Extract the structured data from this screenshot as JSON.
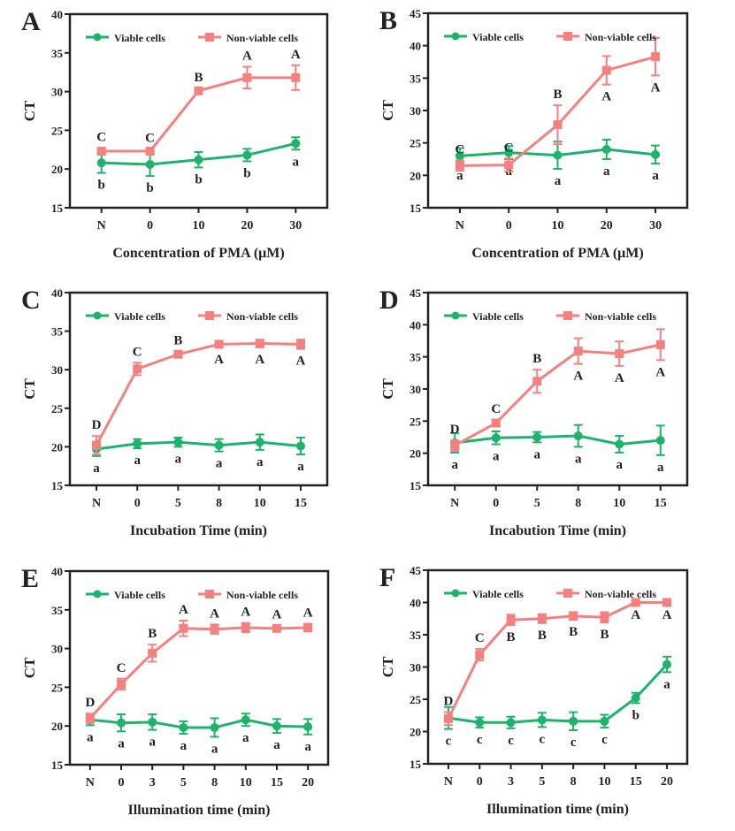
{
  "colors": {
    "viable": "#1db36b",
    "nonviable": "#f58080",
    "axis": "#222222"
  },
  "chart_data": [
    {
      "panel": "A",
      "type": "line",
      "ylabel": "CT",
      "xlabel": "Concentration of PMA (μM)",
      "ylim": [
        15,
        40
      ],
      "yticks": [
        15,
        20,
        25,
        30,
        35,
        40
      ],
      "categories": [
        "N",
        "0",
        "10",
        "20",
        "30"
      ],
      "legend_position": "top",
      "grid": false,
      "series": [
        {
          "name": "Viable cells",
          "marker": "circle",
          "values": [
            20.8,
            20.6,
            21.2,
            21.8,
            23.3
          ],
          "errors": [
            1.3,
            1.5,
            1.0,
            0.8,
            0.8
          ],
          "letters": [
            "b",
            "b",
            "b",
            "b",
            "a"
          ]
        },
        {
          "name": "Non-viable cells",
          "marker": "square",
          "values": [
            22.3,
            22.3,
            30.1,
            31.8,
            31.8
          ],
          "errors": [
            0.4,
            0.3,
            0.3,
            1.4,
            1.6
          ],
          "letters": [
            "C",
            "C",
            "B",
            "A",
            "A"
          ]
        }
      ]
    },
    {
      "panel": "B",
      "type": "line",
      "ylabel": "CT",
      "xlabel": "Concentration of PMA (μM)",
      "ylim": [
        15,
        45
      ],
      "yticks": [
        15,
        20,
        25,
        30,
        35,
        40,
        45
      ],
      "categories": [
        "N",
        "0",
        "10",
        "20",
        "30"
      ],
      "legend_position": "top",
      "grid": false,
      "series": [
        {
          "name": "Viable cells",
          "marker": "circle",
          "values": [
            23.0,
            23.5,
            23.1,
            24.0,
            23.2
          ],
          "errors": [
            1.2,
            1.0,
            2.1,
            1.5,
            1.4
          ],
          "letters": [
            "a",
            "a",
            "a",
            "a",
            "a"
          ]
        },
        {
          "name": "Non-viable cells",
          "marker": "square",
          "values": [
            21.5,
            21.6,
            27.8,
            36.2,
            38.3
          ],
          "errors": [
            0.8,
            1.0,
            3.0,
            2.2,
            2.9
          ],
          "letters": [
            "C",
            "C",
            "B",
            "A",
            "A"
          ]
        }
      ]
    },
    {
      "panel": "C",
      "type": "line",
      "ylabel": "CT",
      "xlabel": "Incubation Time (min)",
      "ylim": [
        15,
        40
      ],
      "yticks": [
        15,
        20,
        25,
        30,
        35,
        40
      ],
      "categories": [
        "N",
        "0",
        "5",
        "8",
        "10",
        "15"
      ],
      "legend_position": "top",
      "grid": false,
      "series": [
        {
          "name": "Viable cells",
          "marker": "circle",
          "values": [
            19.7,
            20.4,
            20.6,
            20.2,
            20.6,
            20.1
          ],
          "errors": [
            0.9,
            0.6,
            0.6,
            0.8,
            1.0,
            1.1
          ],
          "letters": [
            "a",
            "a",
            "a",
            "a",
            "a",
            "a"
          ]
        },
        {
          "name": "Non-viable cells",
          "marker": "square",
          "values": [
            20.2,
            30.1,
            32.0,
            33.3,
            33.4,
            33.3
          ],
          "errors": [
            1.2,
            0.8,
            0.4,
            0.4,
            0.5,
            0.6
          ],
          "letters": [
            "D",
            "C",
            "B",
            "A",
            "A",
            "A"
          ]
        }
      ]
    },
    {
      "panel": "D",
      "type": "line",
      "ylabel": "CT",
      "xlabel": "Incabution Time (min)",
      "ylim": [
        15,
        45
      ],
      "yticks": [
        15,
        20,
        25,
        30,
        35,
        40,
        45
      ],
      "categories": [
        "N",
        "0",
        "5",
        "8",
        "10",
        "15"
      ],
      "legend_position": "top",
      "grid": false,
      "series": [
        {
          "name": "Viable cells",
          "marker": "circle",
          "values": [
            21.6,
            22.4,
            22.5,
            22.7,
            21.4,
            22.0
          ],
          "errors": [
            1.5,
            1.0,
            0.8,
            1.7,
            1.3,
            2.3
          ],
          "letters": [
            "a",
            "a",
            "a",
            "a",
            "a",
            "a"
          ]
        },
        {
          "name": "Non-viable cells",
          "marker": "square",
          "values": [
            21.2,
            24.7,
            31.2,
            35.9,
            35.5,
            36.9
          ],
          "errors": [
            0.8,
            0.5,
            1.8,
            2.0,
            1.9,
            2.4
          ],
          "letters": [
            "D",
            "C",
            "B",
            "A",
            "A",
            "A"
          ]
        }
      ]
    },
    {
      "panel": "E",
      "type": "line",
      "ylabel": "CT",
      "xlabel": "Illumination time (min)",
      "ylim": [
        15,
        40
      ],
      "yticks": [
        15,
        20,
        25,
        30,
        35,
        40
      ],
      "categories": [
        "N",
        "0",
        "3",
        "5",
        "8",
        "10",
        "15",
        "20"
      ],
      "legend_position": "top",
      "grid": false,
      "series": [
        {
          "name": "Viable cells",
          "marker": "circle",
          "values": [
            20.8,
            20.4,
            20.5,
            19.8,
            19.8,
            20.8,
            20.0,
            19.9
          ],
          "errors": [
            0.7,
            1.1,
            1.0,
            0.8,
            1.2,
            0.8,
            0.9,
            1.0
          ],
          "letters": [
            "a",
            "a",
            "a",
            "a",
            "a",
            "a",
            "a",
            "a"
          ]
        },
        {
          "name": "Non-viable cells",
          "marker": "square",
          "values": [
            21.0,
            25.4,
            29.4,
            32.6,
            32.5,
            32.7,
            32.6,
            32.7
          ],
          "errors": [
            0.6,
            0.7,
            1.1,
            1.0,
            0.6,
            0.6,
            0.4,
            0.5
          ],
          "letters": [
            "D",
            "C",
            "B",
            "A",
            "A",
            "A",
            "A",
            "A"
          ]
        }
      ]
    },
    {
      "panel": "F",
      "type": "line",
      "ylabel": "CT",
      "xlabel": "Illumination time (min)",
      "ylim": [
        15,
        45
      ],
      "yticks": [
        15,
        20,
        25,
        30,
        35,
        40,
        45
      ],
      "categories": [
        "N",
        "0",
        "3",
        "5",
        "8",
        "10",
        "15",
        "20"
      ],
      "legend_position": "top",
      "grid": false,
      "series": [
        {
          "name": "Viable cells",
          "marker": "circle",
          "values": [
            22.1,
            21.4,
            21.4,
            21.8,
            21.6,
            21.6,
            25.2,
            30.4
          ],
          "errors": [
            1.7,
            0.8,
            0.9,
            1.1,
            1.4,
            1.0,
            0.8,
            1.2
          ],
          "letters": [
            "c",
            "c",
            "c",
            "c",
            "c",
            "c",
            "b",
            "a"
          ]
        },
        {
          "name": "Non-viable cells",
          "marker": "square",
          "values": [
            22.0,
            31.9,
            37.3,
            37.5,
            37.9,
            37.7,
            40.0,
            40.0
          ],
          "errors": [
            1.0,
            0.9,
            0.8,
            0.7,
            0.6,
            0.8,
            0.1,
            0.1
          ],
          "letters": [
            "D",
            "C",
            "B",
            "B",
            "B",
            "B",
            "A",
            "A"
          ]
        }
      ]
    }
  ]
}
